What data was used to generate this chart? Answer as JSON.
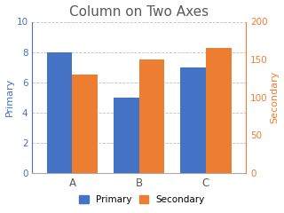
{
  "title": "Column on Two Axes",
  "categories": [
    "A",
    "B",
    "C"
  ],
  "primary_values": [
    8,
    5,
    7
  ],
  "secondary_values": [
    130,
    150,
    165
  ],
  "primary_color": "#4472C4",
  "secondary_color": "#ED7D31",
  "primary_label": "Primary",
  "secondary_label": "Secondary",
  "primary_ylim": [
    0,
    10
  ],
  "primary_yticks": [
    0,
    2,
    4,
    6,
    8,
    10
  ],
  "secondary_ylim": [
    0,
    200
  ],
  "secondary_yticks": [
    0,
    50,
    100,
    150,
    200
  ],
  "title_color": "#595959",
  "primary_axis_color": "#4472C4",
  "secondary_axis_color": "#ED7D31",
  "background_color": "#FFFFFF",
  "grid_color": "#C0C0C0",
  "title_fontsize": 11,
  "bar_width": 0.38
}
